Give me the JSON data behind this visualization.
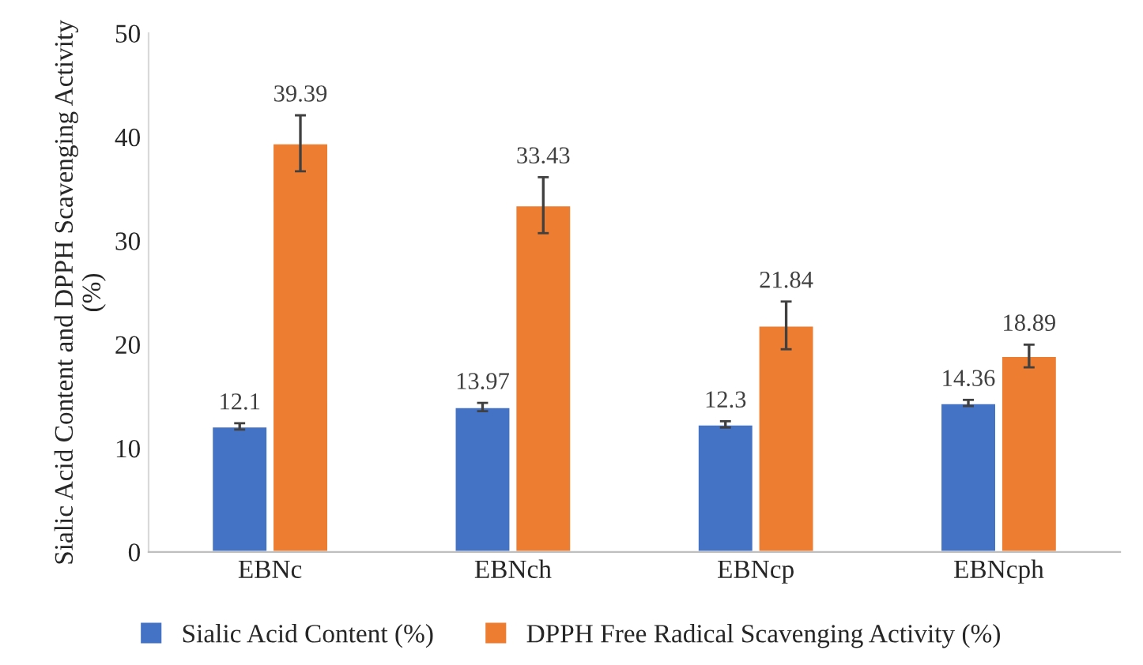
{
  "chart_data": {
    "type": "bar",
    "ylabel": "Sialic Acid Content and DPPH Scavenging Activity (%)",
    "categories": [
      "EBNc",
      "EBNch",
      "EBNcp",
      "EBNcph"
    ],
    "series": [
      {
        "name": "Sialic Acid Content (%)",
        "color": "#4472c4",
        "values": [
          12.1,
          13.97,
          12.3,
          14.36
        ],
        "errors": [
          0.3,
          0.4,
          0.3,
          0.3
        ]
      },
      {
        "name": "DPPH Free Radical Scavenging Activity (%)",
        "color": "#ed7d31",
        "values": [
          39.39,
          33.43,
          21.84,
          18.89
        ],
        "errors": [
          2.7,
          2.7,
          2.3,
          1.1
        ]
      }
    ],
    "ylim": [
      0,
      50
    ],
    "yticks": [
      0,
      10,
      20,
      30,
      40,
      50
    ],
    "data_labels": true,
    "legend": "bottom",
    "grid": false
  }
}
